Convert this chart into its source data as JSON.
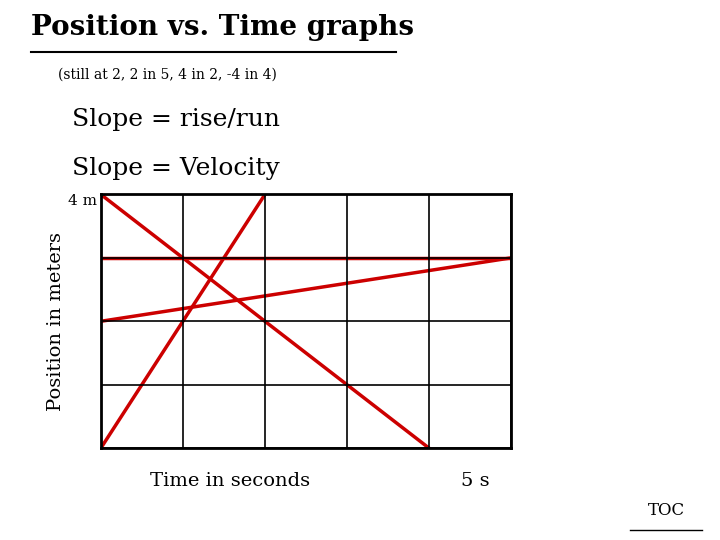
{
  "title": "Position vs. Time graphs",
  "subtitle": "(still at 2, 2 in 5, 4 in 2, -4 in 4)",
  "text_line1": "Slope = rise/run",
  "text_line2": "Slope = Velocity",
  "xlabel": "Time in seconds",
  "x_label_5s": "5 s",
  "ylabel": "Position in meters",
  "y_label_4m": "4 m",
  "xlim": [
    0,
    5
  ],
  "ylim": [
    -4,
    4
  ],
  "xticks": [
    0,
    1,
    2,
    3,
    4,
    5
  ],
  "yticks": [
    -4,
    -2,
    0,
    2,
    4
  ],
  "grid_color": "#000000",
  "background_color": "#ffffff",
  "line_color": "#cc0000",
  "line_width": 2.5,
  "lines": [
    {
      "x": [
        0,
        5
      ],
      "y": [
        2,
        2
      ],
      "label": "still at 2"
    },
    {
      "x": [
        0,
        5
      ],
      "y": [
        0,
        2
      ],
      "label": "2 in 5"
    },
    {
      "x": [
        0,
        2
      ],
      "y": [
        -4,
        4
      ],
      "label": "4 in 2"
    },
    {
      "x": [
        0,
        4
      ],
      "y": [
        4,
        -4
      ],
      "label": "-4 in 4"
    }
  ],
  "toc_text": "TOC",
  "title_fontsize": 20,
  "subtitle_fontsize": 10,
  "text_fontsize": 18,
  "axis_label_fontsize": 14
}
